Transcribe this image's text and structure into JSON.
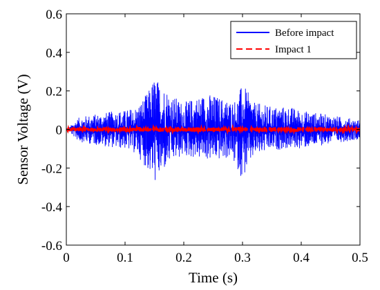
{
  "chart_data": {
    "type": "line",
    "title": "",
    "xlabel": "Time (s)",
    "ylabel": "Sensor Voltage (V)",
    "xlim": [
      0,
      0.5
    ],
    "ylim": [
      -0.6,
      0.6
    ],
    "xticks": [
      "0",
      "0.1",
      "0.2",
      "0.3",
      "0.4",
      "0.5"
    ],
    "yticks": [
      "-0.6",
      "-0.4",
      "-0.2",
      "0",
      "0.2",
      "0.4",
      "0.6"
    ],
    "grid": false,
    "legend_position": "top-right",
    "series": [
      {
        "name": "Before impact",
        "color": "#0000ff",
        "style": "solid",
        "envelope": {
          "x": [
            0,
            0.005,
            0.01,
            0.02,
            0.03,
            0.05,
            0.07,
            0.09,
            0.1,
            0.12,
            0.14,
            0.15,
            0.16,
            0.17,
            0.18,
            0.2,
            0.22,
            0.24,
            0.26,
            0.28,
            0.29,
            0.3,
            0.32,
            0.35,
            0.38,
            0.4,
            0.42,
            0.44,
            0.46,
            0.48,
            0.5
          ],
          "upper": [
            0,
            0.01,
            0.03,
            0.06,
            0.07,
            0.08,
            0.09,
            0.1,
            0.1,
            0.12,
            0.2,
            0.28,
            0.24,
            0.22,
            0.18,
            0.14,
            0.17,
            0.19,
            0.17,
            0.15,
            0.16,
            0.24,
            0.14,
            0.12,
            0.12,
            0.1,
            0.09,
            0.08,
            0.07,
            0.06,
            0.05
          ],
          "lower": [
            0,
            -0.01,
            -0.03,
            -0.06,
            -0.07,
            -0.08,
            -0.09,
            -0.1,
            -0.1,
            -0.13,
            -0.22,
            -0.28,
            -0.25,
            -0.2,
            -0.17,
            -0.14,
            -0.15,
            -0.16,
            -0.16,
            -0.15,
            -0.2,
            -0.26,
            -0.14,
            -0.11,
            -0.1,
            -0.1,
            -0.09,
            -0.08,
            -0.07,
            -0.06,
            -0.05
          ]
        }
      },
      {
        "name": "Impact 1",
        "color": "#ff0000",
        "style": "dashed",
        "envelope": {
          "x": [
            0,
            0.1,
            0.2,
            0.3,
            0.4,
            0.5
          ],
          "upper": [
            0.01,
            0.012,
            0.012,
            0.012,
            0.012,
            0.01
          ],
          "lower": [
            -0.01,
            -0.012,
            -0.012,
            -0.012,
            -0.012,
            -0.01
          ]
        }
      }
    ]
  }
}
